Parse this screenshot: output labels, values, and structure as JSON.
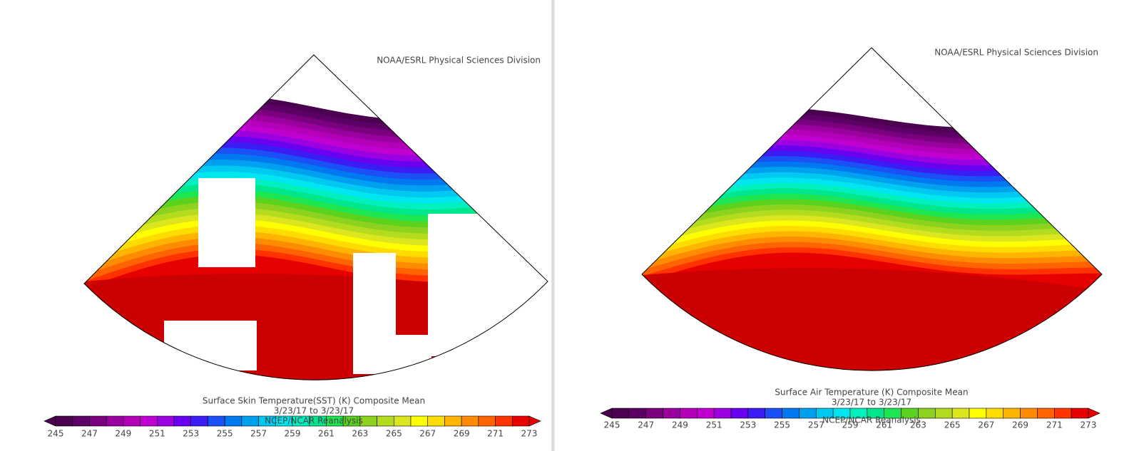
{
  "panels": [
    {
      "credit": "NOAA/ESRL Physical Sciences Division",
      "title": "Surface Skin Temperature(SST) (K) Composite Mean",
      "date_range": "3/23/17  to 3/23/17",
      "source": "NCEP/NCAR Reanalysis",
      "colorbar_ticks": [
        245,
        247,
        249,
        251,
        253,
        255,
        257,
        259,
        261,
        263,
        265,
        267,
        269,
        271,
        273
      ]
    },
    {
      "credit": "NOAA/ESRL Physical Sciences Division",
      "title": "Surface Air Temperature (K) Composite Mean",
      "date_range": "3/23/17  to 3/23/17",
      "source": "NCEP/NCAR Reanalysis",
      "colorbar_ticks": [
        245,
        247,
        249,
        251,
        253,
        255,
        257,
        259,
        261,
        263,
        265,
        267,
        269,
        271,
        273
      ]
    }
  ],
  "colors": [
    "#4b0050",
    "#5c0066",
    "#7a0080",
    "#99009e",
    "#b300b8",
    "#c000d0",
    "#9a00e0",
    "#6a00f0",
    "#3c1cf5",
    "#1a50f5",
    "#0078f0",
    "#00a0f0",
    "#00c8f0",
    "#00e6f0",
    "#00f0c0",
    "#00e68c",
    "#1ee650",
    "#5ad21e",
    "#8cd21e",
    "#b4dc1e",
    "#dce61e",
    "#ffff00",
    "#ffdc00",
    "#ffb400",
    "#ff8c00",
    "#ff6400",
    "#ff3200",
    "#e60000"
  ]
}
